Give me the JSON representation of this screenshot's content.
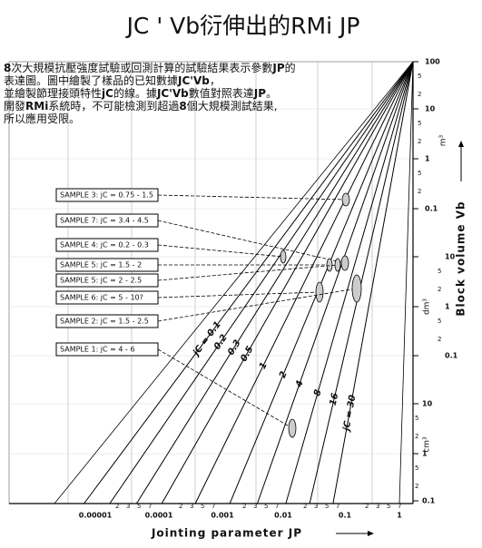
{
  "title": "JC ' Vb衍伸出的RMi JP",
  "intro": [
    [
      {
        "text": "8",
        "bold": true
      },
      {
        "text": "次大規模抗壓強度試驗或回測計算的試驗結果表示參數"
      },
      {
        "text": "JP",
        "bold": true
      },
      {
        "text": "的"
      }
    ],
    [
      {
        "text": "表達圖。圖中繪製了樣品的已知數據"
      },
      {
        "text": "JC'Vb",
        "bold": true
      },
      {
        "text": "，"
      }
    ],
    [
      {
        "text": "並繪製節理接頭特性"
      },
      {
        "text": "jC",
        "bold": true
      },
      {
        "text": "的線。據"
      },
      {
        "text": "JC'Vb",
        "bold": true
      },
      {
        "text": "數值對照表達"
      },
      {
        "text": "JP",
        "bold": true
      },
      {
        "text": "。"
      }
    ],
    [
      {
        "text": "開發"
      },
      {
        "text": "RMi",
        "bold": true
      },
      {
        "text": "系統時，不可能檢測到超過"
      },
      {
        "text": "8",
        "bold": true
      },
      {
        "text": "個大規模測試結果,"
      }
    ],
    [
      {
        "text": "所以應用受限。"
      }
    ]
  ],
  "samples": [
    "SAMPLE 3: jC = 0.75 - 1.5",
    "SAMPLE 7: jC = 3.4 - 4.5",
    "SAMPLE 4: jC = 0.2 - 0.3",
    "SAMPLE 5: jC = 1.5 - 2",
    "SAMPLE 5: jC = 2 - 2.5",
    "SAMPLE 6: jC = 5 - 10?",
    "SAMPLE 2: jC = 1.5 - 2.5",
    "SAMPLE 1: jC = 4 - 6"
  ],
  "jc_lines": [
    "jC = 0.1",
    "0.2",
    "0.3",
    "0.5",
    "1",
    "2",
    "4",
    "8",
    "16",
    "jC = 30"
  ],
  "x_axis": {
    "label": "Jointing parameter JP",
    "ticks": [
      "0.00001",
      "0.0001",
      "0.001",
      "0.01",
      "0.1",
      "1"
    ],
    "minor": [
      "2",
      "3",
      "5",
      "7"
    ]
  },
  "y_axis": {
    "label": "Block volume Vb",
    "minor": [
      "5",
      "2"
    ],
    "groups": [
      {
        "unit": "m³",
        "ticks": [
          "100",
          "10",
          "1",
          "0.1"
        ]
      },
      {
        "unit": "dm³",
        "ticks": [
          "10",
          "1",
          "0.1"
        ]
      },
      {
        "unit": "cm³",
        "ticks": [
          "10",
          "1",
          "0.1"
        ]
      }
    ]
  }
}
